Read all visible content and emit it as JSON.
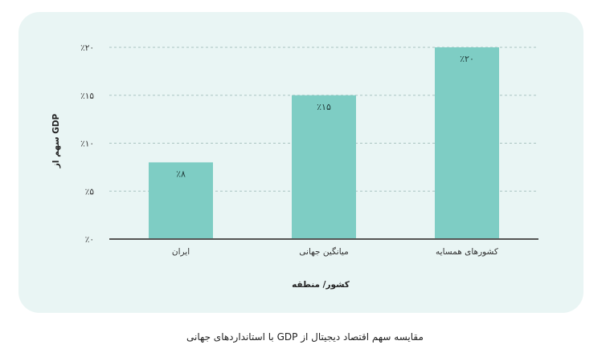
{
  "chart_data": {
    "type": "bar",
    "categories": [
      "ایران",
      "میانگین جهانی",
      "کشورهای همسایه"
    ],
    "values": [
      8,
      15,
      20
    ],
    "value_labels": [
      "٪۸",
      "٪۱۵",
      "٪۲۰"
    ],
    "xlabel": "کشور/ منطقه",
    "ylabel": "سهم از GDP",
    "ylim": [
      0,
      20
    ],
    "yticks": [
      0,
      5,
      10,
      15,
      20
    ],
    "ytick_labels": [
      "٪۰",
      "٪۵",
      "٪۱۰",
      "٪۱۵",
      "٪۲۰"
    ],
    "grid": true,
    "legend": "none",
    "bar_color": "#7ecdc4",
    "axis_color": "#555555",
    "grid_color": "#a9c4c1"
  },
  "caption": "مقایسه سهم اقتصاد دیجیتال از GDP با استانداردهای جهانی"
}
